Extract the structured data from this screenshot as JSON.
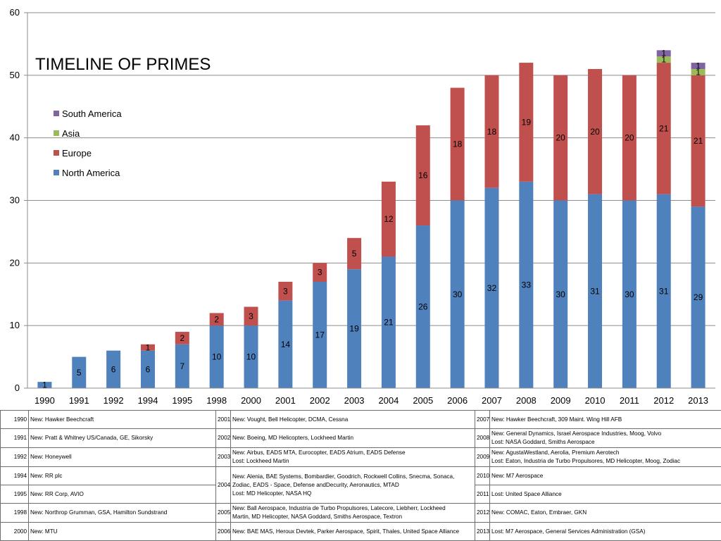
{
  "chart_data": {
    "type": "bar",
    "stacked": true,
    "title": "TIMELINE OF PRIMES",
    "categories": [
      "1990",
      "1991",
      "1992",
      "1994",
      "1995",
      "1998",
      "2000",
      "2001",
      "2002",
      "2003",
      "2004",
      "2005",
      "2006",
      "2007",
      "2008",
      "2009",
      "2010",
      "2011",
      "2012",
      "2013"
    ],
    "series": [
      {
        "name": "North America",
        "color": "#4f81bd",
        "values": [
          1,
          5,
          6,
          6,
          7,
          10,
          10,
          14,
          17,
          19,
          21,
          26,
          30,
          32,
          33,
          30,
          31,
          30,
          31,
          29
        ]
      },
      {
        "name": "Europe",
        "color": "#c0504d",
        "values": [
          0,
          0,
          0,
          1,
          2,
          2,
          3,
          3,
          3,
          5,
          12,
          16,
          18,
          18,
          19,
          20,
          20,
          20,
          21,
          21
        ]
      },
      {
        "name": "Asia",
        "color": "#9bbb59",
        "values": [
          0,
          0,
          0,
          0,
          0,
          0,
          0,
          0,
          0,
          0,
          0,
          0,
          0,
          0,
          0,
          0,
          0,
          0,
          1,
          1
        ]
      },
      {
        "name": "South America",
        "color": "#8064a2",
        "values": [
          0,
          0,
          0,
          0,
          0,
          0,
          0,
          0,
          0,
          0,
          0,
          0,
          0,
          0,
          0,
          0,
          0,
          0,
          1,
          1
        ]
      }
    ],
    "yticks": [
      0,
      10,
      20,
      30,
      40,
      50,
      60
    ],
    "ylim": [
      0,
      60
    ],
    "grid": true,
    "legend_position": "left",
    "xlabel": "",
    "ylabel": ""
  },
  "legend_order": [
    "South America",
    "Asia",
    "Europe",
    "North America"
  ],
  "events_table": [
    [
      {
        "year": "1990",
        "text": "New: Hawker Beechcraft"
      },
      {
        "year": "2001",
        "text": "New: Vought, Bell Helicopter, DCMA, Cessna"
      },
      {
        "year": "2007",
        "text": "New: Hawker Beechcraft, 309 Maint. Wing Hill AFB"
      }
    ],
    [
      {
        "year": "1991",
        "text": "New: Pratt & Whitney US/Canada, GE, Sikorsky"
      },
      {
        "year": "2002",
        "text": "New: Boeing, MD Helicopters, Lockheed Martin"
      },
      {
        "year": "2008",
        "text": "New: General Dynamics, Israel Aerospace Industries, Moog, Volvo\nLost: NASA Goddard, Smiths Aerospace"
      }
    ],
    [
      {
        "year": "1992",
        "text": "New: Honeywell"
      },
      {
        "year": "2003",
        "text": "New: Airbus, EADS MTA, Eurocopter, EADS Atrium, EADS Defense\nLost: Lockheed Martin"
      },
      {
        "year": "2009",
        "text": "New: AgustaWestland, Aerolia, Premium Aerotech\nLost: Eaton, Industria de Turbo Propulsores, MD Helicopter, Moog, Zodiac"
      }
    ],
    [
      {
        "year": "1994",
        "text": "New: RR plc"
      },
      {
        "year": "2004",
        "text": "New: Alenia, BAE Systems, Bombardier, Goodrich, Rockwell Collins, Snecma, Sonaca,\nZodiac, EADS - Space, Defense andDecurity, Aeronautics, MTAD\nLost: MD Helicopter, NASA HQ",
        "rowspan": 2
      },
      {
        "year": "2010",
        "text": "New: M7 Aerospace"
      }
    ],
    [
      {
        "year": "1995",
        "text": "New: RR Corp, AVIO"
      },
      {
        "year": "2011",
        "text": "Lost: United Space Alliance"
      }
    ],
    [
      {
        "year": "1998",
        "text": "New: Northrop Grumman, GSA, Hamilton Sundstrand"
      },
      {
        "year": "2005",
        "text": "New: Ball Aerospace, Industria de Turbo Propulsores, Latecore, Liebherr, Lockheed\nMartin, MD Helicopter, NASA Goddard, Smiths Aerospace, Textron"
      },
      {
        "year": "2012",
        "text": "New: COMAC, Eaton, Embraer, GKN"
      }
    ],
    [
      {
        "year": "2000",
        "text": "New: MTU"
      },
      {
        "year": "2006",
        "text": "New: BAE MAS, Heroux Devtek, Parker Aerospace, Spirit, Thales, United Space Alliance"
      },
      {
        "year": "2013",
        "text": "Lost: M7 Aerospace, General Services Administration (GSA)"
      }
    ]
  ]
}
